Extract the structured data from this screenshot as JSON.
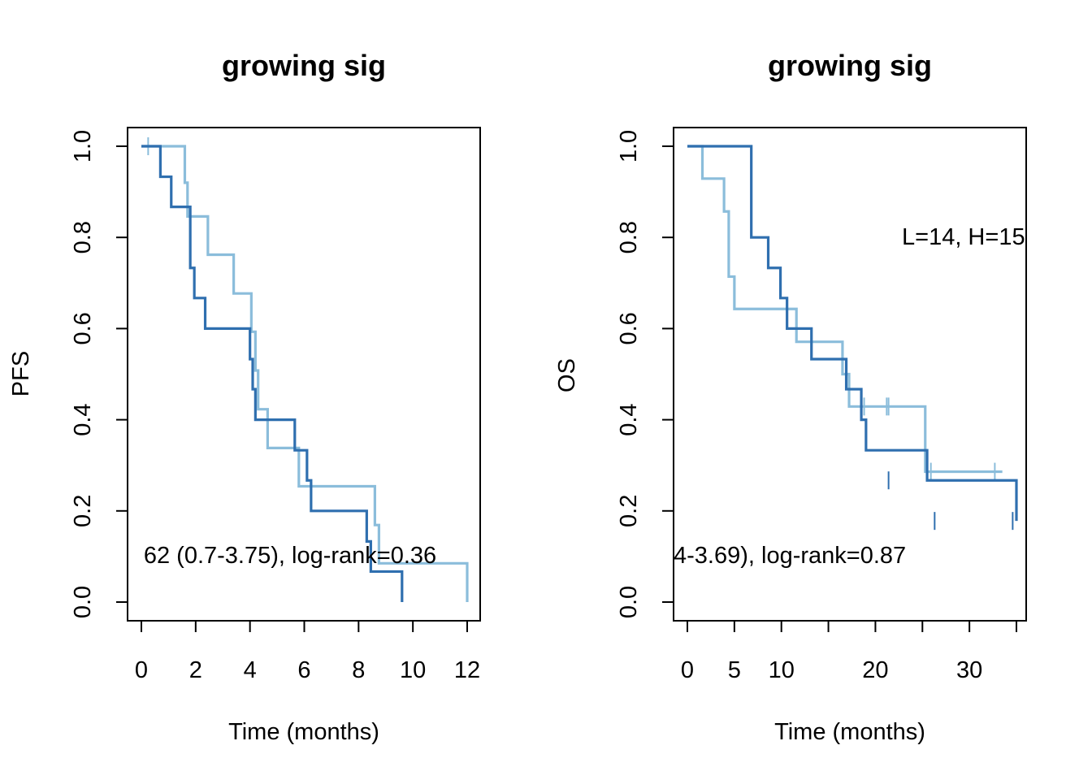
{
  "colors": {
    "light_series": "#8bbddb",
    "dark_series": "#2f6faf",
    "axis": "#000000"
  },
  "chart_data": [
    {
      "type": "line",
      "subtype": "kaplan-meier",
      "title": "growing sig",
      "xlabel": "Time (months)",
      "ylabel": "PFS",
      "xlim": [
        0,
        12
      ],
      "ylim": [
        0,
        1
      ],
      "xticks": [
        0,
        2,
        4,
        6,
        8,
        10,
        12
      ],
      "xtick_labels": [
        "0",
        "2",
        "4",
        "6",
        "8",
        "10",
        "12"
      ],
      "yticks": [
        0,
        0.2,
        0.4,
        0.6,
        0.8,
        1.0
      ],
      "ytick_labels": [
        "0.0",
        "0.2",
        "0.4",
        "0.6",
        "0.8",
        "1.0"
      ],
      "annotation": {
        "text": "62 (0.7-3.75), log-rank=0.36",
        "x": 4.2,
        "y": 0.1
      },
      "series": [
        {
          "color": "#8bbddb",
          "x": [
            0,
            1.6,
            1.65,
            1.7,
            2.45,
            3.4,
            4.05,
            4.2,
            4.3,
            4.65,
            5.8,
            6.15,
            8.6,
            8.75,
            12
          ],
          "y": [
            1.0,
            0.92,
            0.92,
            0.846,
            0.762,
            0.677,
            0.593,
            0.508,
            0.423,
            0.338,
            0.254,
            0.254,
            0.169,
            0.085,
            0.0
          ],
          "censor_x": [
            0.25
          ],
          "censor_y": [
            1.0
          ]
        },
        {
          "color": "#2f6faf",
          "x": [
            0,
            0.7,
            1.1,
            1.8,
            1.95,
            2.35,
            4.0,
            4.1,
            4.2,
            5.65,
            6.1,
            6.25,
            8.3,
            8.45,
            9.6
          ],
          "y": [
            1.0,
            0.933,
            0.867,
            0.733,
            0.667,
            0.6,
            0.533,
            0.467,
            0.4,
            0.333,
            0.267,
            0.2,
            0.133,
            0.067,
            0.0
          ],
          "censor_x": [],
          "censor_y": []
        }
      ]
    },
    {
      "type": "line",
      "subtype": "kaplan-meier",
      "title": "growing sig",
      "xlabel": "Time (months)",
      "ylabel": "OS",
      "xlim": [
        0,
        35
      ],
      "ylim": [
        0,
        1
      ],
      "xticks": [
        0,
        5,
        10,
        15,
        20,
        25,
        30,
        35
      ],
      "xtick_labels": [
        "0",
        "5",
        "10",
        "",
        "20",
        "",
        "30",
        ""
      ],
      "yticks": [
        0,
        0.2,
        0.4,
        0.6,
        0.8,
        1.0
      ],
      "ytick_labels": [
        "0.0",
        "0.2",
        "0.4",
        "0.6",
        "0.8",
        "1.0"
      ],
      "annotations": [
        {
          "text": "L=14, H=15",
          "x": 23,
          "y": 0.8,
          "anchor": "start"
        },
        {
          "text": "4-3.69), log-rank=0.87",
          "x": 0,
          "y": 0.1,
          "anchor": "start"
        }
      ],
      "series": [
        {
          "color": "#8bbddb",
          "x": [
            0,
            1.6,
            3.9,
            4.4,
            5.0,
            11.6,
            12.4,
            16.5,
            16.7,
            17.2,
            25.3,
            33.5
          ],
          "y": [
            1.0,
            0.929,
            0.857,
            0.714,
            0.643,
            0.571,
            0.571,
            0.5,
            0.5,
            0.429,
            0.286,
            0.286
          ],
          "censor_x": [
            18.8,
            21.2,
            21.4,
            25.9,
            32.7
          ],
          "censor_y": [
            0.429,
            0.429,
            0.429,
            0.286,
            0.286
          ]
        },
        {
          "color": "#2f6faf",
          "x": [
            0,
            6.8,
            8.6,
            9.9,
            10.6,
            13.2,
            16.9,
            18.5,
            19.0,
            25.5,
            35.0
          ],
          "y": [
            1.0,
            0.8,
            0.733,
            0.667,
            0.6,
            0.533,
            0.467,
            0.4,
            0.333,
            0.267,
            0.178
          ],
          "censor_x": [
            21.4,
            26.3,
            34.6
          ],
          "censor_y": [
            0.267,
            0.178,
            0.178
          ]
        }
      ]
    }
  ]
}
